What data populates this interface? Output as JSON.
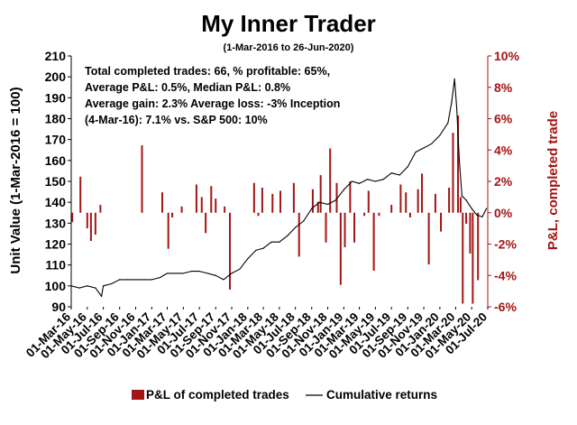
{
  "chart_data": {
    "type": "bar+line",
    "title": "My Inner Trader",
    "subtitle": "(1-Mar-2016 to 26-Jun-2020)",
    "annotation": [
      "Total completed trades: 66, % profitable: 65%,",
      "Average P&L: 0.5%, Median P&L: 0.8%",
      "Average gain: 2.3% Average loss: -3%  Inception",
      "(4-Mar-16): 7.1% vs. S&P 500: 10%"
    ],
    "y_left": {
      "label": "Unit Value (1-Mar-2016 = 100)",
      "ylim": [
        90,
        210
      ],
      "ticks": [
        "90",
        "100",
        "110",
        "120",
        "130",
        "140",
        "150",
        "160",
        "170",
        "180",
        "190",
        "200",
        "210"
      ]
    },
    "y_right": {
      "label": "P&L, completed trade",
      "ylim": [
        -6,
        10
      ],
      "ticks": [
        "-6%",
        "-4%",
        "-2%",
        "0%",
        "2%",
        "4%",
        "6%",
        "8%",
        "10%"
      ],
      "color": "#a31515"
    },
    "x_axis": {
      "ticks": [
        "01-Mar-16",
        "01-May-16",
        "01-Jul-16",
        "01-Sep-16",
        "01-Nov-16",
        "01-Jan-17",
        "01-Mar-17",
        "01-May-17",
        "01-Jul-17",
        "01-Sep-17",
        "01-Nov-17",
        "01-Jan-18",
        "01-Mar-18",
        "01-May-18",
        "01-Jul-18",
        "01-Sep-18",
        "01-Nov-18",
        "01-Jan-19",
        "01-Mar-19",
        "01-May-19",
        "01-Jul-19",
        "01-Sep-19",
        "01-Nov-19",
        "01-Jan-20",
        "01-Mar-20",
        "01-May-20",
        "01-Jul-20"
      ],
      "start_date": "2016-03-01",
      "end_date": "2020-07-01"
    },
    "legend": {
      "placement": "bottom",
      "items": [
        "P&L of completed trades",
        "Cumulative returns"
      ]
    },
    "colors": {
      "bars": "#a31515",
      "line": "#000000",
      "axis_right": "#a31515"
    },
    "series": [
      {
        "name": "P&L of completed trades",
        "type": "bar",
        "axis": "right",
        "points": [
          {
            "date": "2016-03-05",
            "value": -0.6
          },
          {
            "date": "2016-04-05",
            "value": 2.3
          },
          {
            "date": "2016-05-01",
            "value": -1.0
          },
          {
            "date": "2016-05-15",
            "value": -1.8
          },
          {
            "date": "2016-06-01",
            "value": -1.4
          },
          {
            "date": "2016-06-20",
            "value": 0.5
          },
          {
            "date": "2016-11-25",
            "value": 4.3
          },
          {
            "date": "2017-02-10",
            "value": 1.3
          },
          {
            "date": "2017-03-05",
            "value": -2.3
          },
          {
            "date": "2017-03-20",
            "value": -0.3
          },
          {
            "date": "2017-04-25",
            "value": 0.4
          },
          {
            "date": "2017-06-20",
            "value": 1.8
          },
          {
            "date": "2017-07-10",
            "value": 1.0
          },
          {
            "date": "2017-07-25",
            "value": -1.3
          },
          {
            "date": "2017-08-15",
            "value": 1.7
          },
          {
            "date": "2017-09-01",
            "value": 0.9
          },
          {
            "date": "2017-10-05",
            "value": 0.4
          },
          {
            "date": "2017-10-25",
            "value": -4.9
          },
          {
            "date": "2018-01-25",
            "value": 1.9
          },
          {
            "date": "2018-02-10",
            "value": -0.2
          },
          {
            "date": "2018-02-25",
            "value": 1.6
          },
          {
            "date": "2018-04-05",
            "value": 1.2
          },
          {
            "date": "2018-05-05",
            "value": 1.4
          },
          {
            "date": "2018-06-25",
            "value": 1.9
          },
          {
            "date": "2018-07-15",
            "value": -2.8
          },
          {
            "date": "2018-09-05",
            "value": 1.5
          },
          {
            "date": "2018-09-25",
            "value": 0.7
          },
          {
            "date": "2018-10-05",
            "value": 2.4
          },
          {
            "date": "2018-10-25",
            "value": -1.9
          },
          {
            "date": "2018-11-10",
            "value": 4.1
          },
          {
            "date": "2018-12-05",
            "value": 1.9
          },
          {
            "date": "2018-12-20",
            "value": -4.6
          },
          {
            "date": "2019-01-05",
            "value": -2.2
          },
          {
            "date": "2019-01-25",
            "value": 2.0
          },
          {
            "date": "2019-02-10",
            "value": -1.9
          },
          {
            "date": "2019-03-20",
            "value": -0.2
          },
          {
            "date": "2019-04-05",
            "value": 1.4
          },
          {
            "date": "2019-04-25",
            "value": -3.7
          },
          {
            "date": "2019-05-15",
            "value": -0.2
          },
          {
            "date": "2019-07-01",
            "value": 0.5
          },
          {
            "date": "2019-08-05",
            "value": 1.8
          },
          {
            "date": "2019-08-25",
            "value": 1.3
          },
          {
            "date": "2019-09-10",
            "value": -0.3
          },
          {
            "date": "2019-10-10",
            "value": 1.5
          },
          {
            "date": "2019-10-25",
            "value": 2.5
          },
          {
            "date": "2019-11-20",
            "value": -3.3
          },
          {
            "date": "2019-12-15",
            "value": 1.2
          },
          {
            "date": "2020-01-05",
            "value": -1.2
          },
          {
            "date": "2020-02-05",
            "value": 1.6
          },
          {
            "date": "2020-02-20",
            "value": 5.1
          },
          {
            "date": "2020-03-10",
            "value": 6.2
          },
          {
            "date": "2020-03-20",
            "value": 1.0
          },
          {
            "date": "2020-03-28",
            "value": -5.8
          },
          {
            "date": "2020-04-10",
            "value": -0.7
          },
          {
            "date": "2020-04-25",
            "value": -2.6
          },
          {
            "date": "2020-05-05",
            "value": -5.8
          },
          {
            "date": "2020-05-25",
            "value": -4.3
          }
        ]
      },
      {
        "name": "Cumulative returns",
        "type": "line",
        "axis": "left",
        "points": [
          {
            "date": "2016-03-01",
            "value": 100
          },
          {
            "date": "2016-04-01",
            "value": 99
          },
          {
            "date": "2016-05-01",
            "value": 100
          },
          {
            "date": "2016-06-01",
            "value": 99
          },
          {
            "date": "2016-06-24",
            "value": 95
          },
          {
            "date": "2016-07-01",
            "value": 100
          },
          {
            "date": "2016-08-01",
            "value": 101
          },
          {
            "date": "2016-09-01",
            "value": 103
          },
          {
            "date": "2016-10-01",
            "value": 103
          },
          {
            "date": "2016-11-01",
            "value": 103
          },
          {
            "date": "2016-12-01",
            "value": 103
          },
          {
            "date": "2017-01-01",
            "value": 103
          },
          {
            "date": "2017-02-01",
            "value": 104
          },
          {
            "date": "2017-03-01",
            "value": 106
          },
          {
            "date": "2017-04-01",
            "value": 106
          },
          {
            "date": "2017-05-01",
            "value": 106
          },
          {
            "date": "2017-06-01",
            "value": 107
          },
          {
            "date": "2017-07-01",
            "value": 107
          },
          {
            "date": "2017-08-01",
            "value": 106
          },
          {
            "date": "2017-09-01",
            "value": 105
          },
          {
            "date": "2017-10-01",
            "value": 103
          },
          {
            "date": "2017-11-01",
            "value": 106
          },
          {
            "date": "2017-12-01",
            "value": 108
          },
          {
            "date": "2018-01-01",
            "value": 113
          },
          {
            "date": "2018-02-01",
            "value": 117
          },
          {
            "date": "2018-03-01",
            "value": 118
          },
          {
            "date": "2018-04-01",
            "value": 121
          },
          {
            "date": "2018-05-01",
            "value": 121
          },
          {
            "date": "2018-06-01",
            "value": 124
          },
          {
            "date": "2018-07-01",
            "value": 128
          },
          {
            "date": "2018-08-01",
            "value": 131
          },
          {
            "date": "2018-09-01",
            "value": 137
          },
          {
            "date": "2018-10-01",
            "value": 140
          },
          {
            "date": "2018-11-01",
            "value": 139
          },
          {
            "date": "2018-12-01",
            "value": 141
          },
          {
            "date": "2019-01-01",
            "value": 146
          },
          {
            "date": "2019-02-01",
            "value": 150
          },
          {
            "date": "2019-03-01",
            "value": 149
          },
          {
            "date": "2019-04-01",
            "value": 151
          },
          {
            "date": "2019-05-01",
            "value": 150
          },
          {
            "date": "2019-06-01",
            "value": 151
          },
          {
            "date": "2019-07-01",
            "value": 154
          },
          {
            "date": "2019-08-01",
            "value": 153
          },
          {
            "date": "2019-09-01",
            "value": 157
          },
          {
            "date": "2019-10-01",
            "value": 164
          },
          {
            "date": "2019-11-01",
            "value": 166
          },
          {
            "date": "2019-12-01",
            "value": 168
          },
          {
            "date": "2020-01-01",
            "value": 172
          },
          {
            "date": "2020-02-01",
            "value": 178
          },
          {
            "date": "2020-02-15",
            "value": 188
          },
          {
            "date": "2020-02-26",
            "value": 199
          },
          {
            "date": "2020-03-05",
            "value": 185
          },
          {
            "date": "2020-03-15",
            "value": 160
          },
          {
            "date": "2020-03-25",
            "value": 143
          },
          {
            "date": "2020-04-10",
            "value": 141
          },
          {
            "date": "2020-05-01",
            "value": 137
          },
          {
            "date": "2020-05-20",
            "value": 134
          },
          {
            "date": "2020-06-10",
            "value": 133
          },
          {
            "date": "2020-06-26",
            "value": 137
          }
        ]
      }
    ]
  }
}
